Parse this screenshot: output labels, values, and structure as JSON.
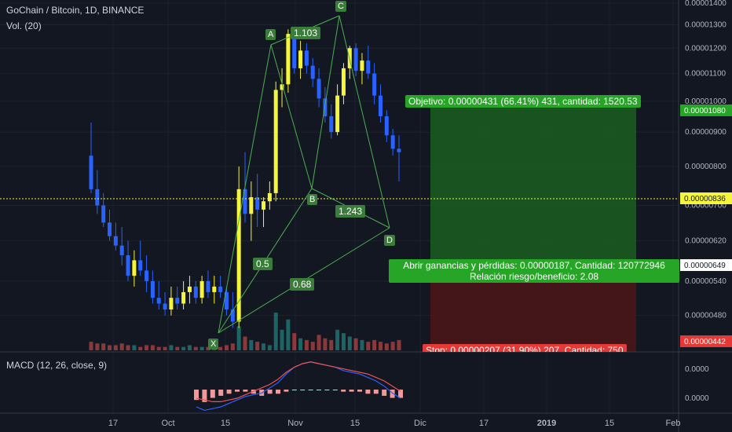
{
  "header": {
    "title": "GoChain / Bitcoin, 1D, BINANCE",
    "volume_label": "Vol. (20)",
    "macd_label": "MACD (12, 26, close, 9)"
  },
  "colors": {
    "background": "#131722",
    "up": "#f5f53c",
    "down": "#2962ff",
    "vol_up": "#26a69a",
    "vol_down": "#ef5350",
    "pattern": "#4caf50",
    "profit_zone": "#1b5e20",
    "stop_zone": "#5c1a1a",
    "current_price": "#f5f53c",
    "target_label": "#26a526",
    "stop_label": "#e53935"
  },
  "price_axis": {
    "ticks": [
      "0.00001400",
      "0.00001300",
      "0.00001200",
      "0.00001100",
      "0.00001000",
      "0.00000900",
      "0.00000800",
      "0.00000700",
      "0.00000620",
      "0.00000540",
      "0.00000480"
    ],
    "current_price": "0.00000836",
    "entry_price": "0.00000649",
    "target_price": "0.00001080",
    "stop_price": "0.00000442"
  },
  "time_axis": {
    "labels": [
      "17",
      "Oct",
      "15",
      "Nov",
      "15",
      "Dic",
      "17",
      "2019",
      "15",
      "Feb"
    ]
  },
  "macd_axis": {
    "ticks": [
      "0.0000",
      "0.0000"
    ]
  },
  "pattern": {
    "points": [
      "X",
      "A",
      "B",
      "C",
      "D"
    ],
    "ratios": {
      "xa_b": "0.5",
      "ab_c": "1.103",
      "bc_d": "1.243",
      "xb_d": "0.68"
    }
  },
  "position": {
    "target_text": "Objetivo: 0.00000431 (66.41%) 431, cantidad: 1520.53",
    "entry_text_line1": "Abrir ganancias y pérdidas: 0.00000187, Cantidad: 120772946",
    "entry_text_line2": "Relación riesgo/beneficio: 2.08",
    "stop_text": "Stop: 0.00000207 (31.90%) 207, Cantidad: 750"
  },
  "chart_data": {
    "type": "candlestick",
    "title": "GoChain / Bitcoin, 1D, BINANCE",
    "x_labels": [
      "17",
      "Oct",
      "15",
      "Nov",
      "15",
      "Dic",
      "17",
      "2019",
      "15",
      "Feb"
    ],
    "y_unit": "BTC",
    "ylim": [
      4.4e-06,
      1.41e-05
    ],
    "ohlc": [
      [
        8.3e-06,
        9.3e-06,
        7.3e-06,
        7.4e-06
      ],
      [
        7.4e-06,
        7.9e-06,
        6.8e-06,
        7e-06
      ],
      [
        7e-06,
        7.3e-06,
        6.5e-06,
        6.6e-06
      ],
      [
        6.6e-06,
        6.9e-06,
        6.2e-06,
        6.3e-06
      ],
      [
        6.3e-06,
        6.6e-06,
        6e-06,
        6.1e-06
      ],
      [
        6.1e-06,
        6.5e-06,
        5.7e-06,
        5.9e-06
      ],
      [
        5.9e-06,
        6.2e-06,
        5.4e-06,
        5.5e-06
      ],
      [
        5.5e-06,
        6e-06,
        5.3e-06,
        5.8e-06
      ],
      [
        5.8e-06,
        6.2e-06,
        5.5e-06,
        5.6e-06
      ],
      [
        5.6e-06,
        5.9e-06,
        5.2e-06,
        5.4e-06
      ],
      [
        5.4e-06,
        5.6e-06,
        5e-06,
        5.1e-06
      ],
      [
        5.1e-06,
        5.4e-06,
        4.9e-06,
        5e-06
      ],
      [
        5e-06,
        5.2e-06,
        4.8e-06,
        4.9e-06
      ],
      [
        4.9e-06,
        5.3e-06,
        4.8e-06,
        5.1e-06
      ],
      [
        5.1e-06,
        5.3e-06,
        4.9e-06,
        5e-06
      ],
      [
        5e-06,
        5.4e-06,
        4.9e-06,
        5.2e-06
      ],
      [
        5.2e-06,
        5.5e-06,
        5e-06,
        5.3e-06
      ],
      [
        5.3e-06,
        5.4e-06,
        5e-06,
        5.1e-06
      ],
      [
        5.1e-06,
        5.5e-06,
        5e-06,
        5.4e-06
      ],
      [
        5.4e-06,
        5.6e-06,
        5.1e-06,
        5.2e-06
      ],
      [
        5.2e-06,
        5.5e-06,
        5e-06,
        5.3e-06
      ],
      [
        5.3e-06,
        5.5e-06,
        5.1e-06,
        5.2e-06
      ],
      [
        5.2e-06,
        5.3e-06,
        4.8e-06,
        4.9e-06
      ],
      [
        4.9e-06,
        5.2e-06,
        4.6e-06,
        4.7e-06
      ],
      [
        4.7e-06,
        8e-06,
        4.6e-06,
        7.4e-06
      ],
      [
        7.4e-06,
        8.4e-06,
        6.6e-06,
        6.8e-06
      ],
      [
        6.8e-06,
        7.6e-06,
        6.2e-06,
        7.2e-06
      ],
      [
        7.2e-06,
        7.8e-06,
        6.5e-06,
        6.9e-06
      ],
      [
        6.9e-06,
        7.2e-06,
        6.5e-06,
        7.1e-06
      ],
      [
        7.1e-06,
        7.6e-06,
        6.9e-06,
        7.3e-06
      ],
      [
        7.3e-06,
        1.07e-05,
        7.1e-06,
        1.04e-05
      ],
      [
        1.04e-05,
        1.12e-05,
        9.8e-06,
        1.06e-05
      ],
      [
        1.06e-05,
        1.28e-05,
        1.03e-05,
        1.26e-05
      ],
      [
        1.26e-05,
        1.29e-05,
        1.1e-05,
        1.12e-05
      ],
      [
        1.12e-05,
        1.23e-05,
        1.08e-05,
        1.19e-05
      ],
      [
        1.19e-05,
        1.22e-05,
        1.1e-05,
        1.13e-05
      ],
      [
        1.13e-05,
        1.16e-05,
        1.05e-05,
        1.08e-05
      ],
      [
        1.08e-05,
        1.12e-05,
        9.8e-06,
        1.01e-05
      ],
      [
        1.01e-05,
        1.05e-05,
        9.3e-06,
        9.5e-06
      ],
      [
        9.5e-06,
        9.9e-06,
        8.8e-06,
        9e-06
      ],
      [
        9e-06,
        1.06e-05,
        8.9e-06,
        1.02e-05
      ],
      [
        1.02e-05,
        1.14e-05,
        9.9e-06,
        1.12e-05
      ],
      [
        1.12e-05,
        1.21e-05,
        1.08e-05,
        1.2e-05
      ],
      [
        1.2e-05,
        1.22e-05,
        1.09e-05,
        1.11e-05
      ],
      [
        1.11e-05,
        1.18e-05,
        1.06e-05,
        1.15e-05
      ],
      [
        1.15e-05,
        1.21e-05,
        1.08e-05,
        1.1e-05
      ],
      [
        1.1e-05,
        1.14e-05,
        9.9e-06,
        1.02e-05
      ],
      [
        1.02e-05,
        1.06e-05,
        9.3e-06,
        9.5e-06
      ],
      [
        9.5e-06,
        9.7e-06,
        8.7e-06,
        8.9e-06
      ],
      [
        8.9e-06,
        9.1e-06,
        8.3e-06,
        8.5e-06
      ],
      [
        8.5e-06,
        8.9e-06,
        7.6e-06,
        8.4e-06
      ]
    ],
    "volume": [
      5,
      4,
      4,
      3,
      3,
      4,
      3,
      3,
      2,
      3,
      3,
      2,
      2,
      3,
      2,
      2,
      3,
      2,
      2,
      2,
      3,
      2,
      3,
      4,
      14,
      8,
      6,
      5,
      4,
      3,
      22,
      12,
      18,
      10,
      7,
      6,
      5,
      9,
      7,
      6,
      12,
      10,
      8,
      7,
      6,
      5,
      6,
      5,
      4,
      5,
      6
    ],
    "macd": [
      -1,
      -1.2,
      -1.1,
      -1,
      -0.8,
      -0.6,
      -0.4,
      -0.3,
      -0.2,
      0.1,
      0.4,
      0.9,
      1.3,
      1.5,
      1.6,
      1.5,
      1.4,
      1.3,
      1.1,
      1.0,
      0.9,
      0.7,
      0.5,
      0.2,
      -0.2,
      -0.5
    ],
    "signal": [
      -0.5,
      -0.6,
      -0.7,
      -0.7,
      -0.6,
      -0.5,
      -0.3,
      -0.1,
      0.1,
      0.3,
      0.6,
      1.0,
      1.3,
      1.5,
      1.6,
      1.5,
      1.4,
      1.3,
      1.2,
      1.1,
      1.0,
      0.9,
      0.7,
      0.5,
      0.2,
      -0.1
    ]
  }
}
